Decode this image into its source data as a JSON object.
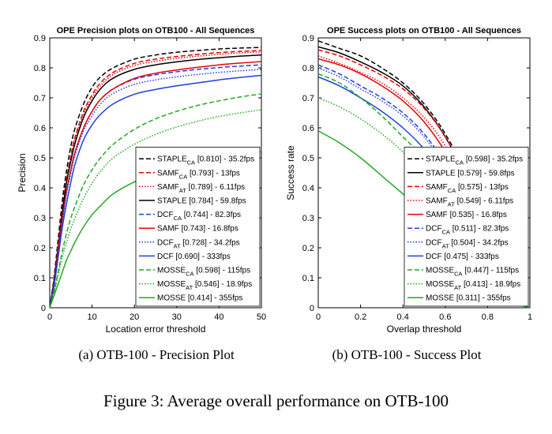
{
  "figure": {
    "caption": "Figure 3: Average overall performance on OTB-100",
    "sub_a": "(a) OTB-100 - Precision Plot",
    "sub_b": "(b) OTB-100 - Success Plot"
  },
  "chart_data": [
    {
      "type": "line",
      "title": "OPE Precision plots on OTB100 - All Sequences",
      "xlabel": "Location error threshold",
      "ylabel": "Precision",
      "xlim": [
        0,
        50
      ],
      "ylim": [
        0,
        0.9
      ],
      "xticks": [
        "0",
        "10",
        "20",
        "30",
        "40",
        "50"
      ],
      "yticks": [
        "0",
        "0.1",
        "0.2",
        "0.3",
        "0.4",
        "0.5",
        "0.6",
        "0.7",
        "0.8",
        "0.9"
      ],
      "grid": false,
      "legend_position": "bottom-right",
      "x": [
        0,
        1,
        2,
        3,
        4,
        5,
        6,
        8,
        10,
        12,
        15,
        20,
        25,
        30,
        35,
        40,
        45,
        50
      ],
      "series": [
        {
          "name": "STAPLE",
          "sub": "CA",
          "metric": "[0.810]",
          "fps": "35.2fps",
          "color": "#000000",
          "dash": "dashed",
          "values": [
            0.0,
            0.1,
            0.23,
            0.36,
            0.46,
            0.54,
            0.6,
            0.68,
            0.735,
            0.77,
            0.8,
            0.829,
            0.843,
            0.852,
            0.858,
            0.863,
            0.866,
            0.868
          ]
        },
        {
          "name": "SAMF",
          "sub": "CA",
          "metric": "[0.793]",
          "fps": "13fps",
          "color": "#ee0000",
          "dash": "dashed",
          "values": [
            0.0,
            0.09,
            0.21,
            0.33,
            0.43,
            0.51,
            0.57,
            0.655,
            0.71,
            0.75,
            0.785,
            0.815,
            0.829,
            0.838,
            0.845,
            0.851,
            0.855,
            0.858
          ]
        },
        {
          "name": "SAMF",
          "sub": "AT",
          "metric": "[0.789]",
          "fps": "6.11fps",
          "color": "#ee0000",
          "dash": "dotted",
          "values": [
            0.0,
            0.09,
            0.21,
            0.33,
            0.43,
            0.5,
            0.56,
            0.645,
            0.7,
            0.74,
            0.778,
            0.808,
            0.822,
            0.832,
            0.839,
            0.845,
            0.85,
            0.853
          ]
        },
        {
          "name": "STAPLE",
          "sub": "",
          "metric": "[0.784]",
          "fps": "59.8fps",
          "color": "#000000",
          "dash": "solid",
          "values": [
            0.0,
            0.09,
            0.2,
            0.32,
            0.42,
            0.49,
            0.55,
            0.635,
            0.69,
            0.73,
            0.766,
            0.795,
            0.81,
            0.82,
            0.828,
            0.834,
            0.839,
            0.843
          ]
        },
        {
          "name": "DCF",
          "sub": "CA",
          "metric": "[0.744]",
          "fps": "82.3fps",
          "color": "#1f3fdd",
          "dash": "dashed",
          "values": [
            0.0,
            0.08,
            0.19,
            0.3,
            0.39,
            0.46,
            0.52,
            0.6,
            0.655,
            0.695,
            0.73,
            0.762,
            0.777,
            0.787,
            0.795,
            0.801,
            0.806,
            0.81
          ]
        },
        {
          "name": "SAMF",
          "sub": "",
          "metric": "[0.743]",
          "fps": "16.8fps",
          "color": "#ee0000",
          "dash": "solid",
          "values": [
            0.0,
            0.08,
            0.19,
            0.3,
            0.39,
            0.46,
            0.52,
            0.6,
            0.655,
            0.695,
            0.73,
            0.765,
            0.782,
            0.793,
            0.802,
            0.81,
            0.816,
            0.821
          ]
        },
        {
          "name": "DCF",
          "sub": "AT",
          "metric": "[0.728]",
          "fps": "34.2fps",
          "color": "#1f3fdd",
          "dash": "dotted",
          "values": [
            0.0,
            0.08,
            0.18,
            0.29,
            0.38,
            0.45,
            0.51,
            0.59,
            0.64,
            0.68,
            0.715,
            0.745,
            0.76,
            0.77,
            0.778,
            0.785,
            0.79,
            0.795
          ]
        },
        {
          "name": "DCF",
          "sub": "",
          "metric": "[0.690]",
          "fps": "333fps",
          "color": "#1f3fdd",
          "dash": "solid",
          "values": [
            0.0,
            0.07,
            0.17,
            0.27,
            0.35,
            0.42,
            0.48,
            0.56,
            0.61,
            0.645,
            0.68,
            0.712,
            0.728,
            0.74,
            0.75,
            0.76,
            0.768,
            0.775
          ]
        },
        {
          "name": "MOSSE",
          "sub": "CA",
          "metric": "[0.598]",
          "fps": "115fps",
          "color": "#22aa22",
          "dash": "dashed",
          "values": [
            0.0,
            0.05,
            0.12,
            0.19,
            0.25,
            0.3,
            0.34,
            0.41,
            0.46,
            0.5,
            0.545,
            0.595,
            0.63,
            0.655,
            0.675,
            0.69,
            0.703,
            0.713
          ]
        },
        {
          "name": "MOSSE",
          "sub": "AT",
          "metric": "[0.546]",
          "fps": "18.9fps",
          "color": "#22aa22",
          "dash": "dotted",
          "values": [
            0.0,
            0.05,
            0.11,
            0.17,
            0.22,
            0.265,
            0.3,
            0.365,
            0.415,
            0.455,
            0.5,
            0.545,
            0.578,
            0.603,
            0.622,
            0.638,
            0.65,
            0.66
          ]
        },
        {
          "name": "MOSSE",
          "sub": "",
          "metric": "[0.414]",
          "fps": "355fps",
          "color": "#22aa22",
          "dash": "solid",
          "values": [
            0.0,
            0.04,
            0.08,
            0.12,
            0.16,
            0.19,
            0.22,
            0.27,
            0.31,
            0.34,
            0.38,
            0.42,
            0.45,
            0.47,
            0.485,
            0.5,
            0.51,
            0.52
          ]
        }
      ]
    },
    {
      "type": "line",
      "title": "OPE Success plots on OTB100 - All Sequences",
      "xlabel": "Overlap threshold",
      "ylabel": "Success rate",
      "xlim": [
        0,
        1
      ],
      "ylim": [
        0,
        0.9
      ],
      "xticks": [
        "0",
        "0.2",
        "0.4",
        "0.6",
        "0.8",
        "1"
      ],
      "yticks": [
        "0",
        "0.1",
        "0.2",
        "0.3",
        "0.4",
        "0.5",
        "0.6",
        "0.7",
        "0.8",
        "0.9"
      ],
      "grid": false,
      "legend_position": "bottom-right",
      "x": [
        0,
        0.1,
        0.2,
        0.3,
        0.4,
        0.5,
        0.6,
        0.7,
        0.8,
        0.9,
        1.0
      ],
      "series": [
        {
          "name": "STAPLE",
          "sub": "CA",
          "metric": "[0.598]",
          "fps": "35.2fps",
          "color": "#000000",
          "dash": "dashed",
          "values": [
            0.89,
            0.865,
            0.84,
            0.8,
            0.75,
            0.68,
            0.58,
            0.44,
            0.22,
            0.05,
            0.0
          ]
        },
        {
          "name": "STAPLE",
          "sub": "",
          "metric": "[0.579]",
          "fps": "59.8fps",
          "color": "#000000",
          "dash": "solid",
          "values": [
            0.87,
            0.85,
            0.82,
            0.785,
            0.74,
            0.67,
            0.57,
            0.43,
            0.21,
            0.045,
            0.0
          ]
        },
        {
          "name": "SAMF",
          "sub": "CA",
          "metric": "[0.575]",
          "fps": "13fps",
          "color": "#ee0000",
          "dash": "dashed",
          "values": [
            0.86,
            0.84,
            0.81,
            0.775,
            0.73,
            0.665,
            0.57,
            0.43,
            0.22,
            0.05,
            0.0
          ]
        },
        {
          "name": "SAMF",
          "sub": "AT",
          "metric": "[0.549]",
          "fps": "6.11fps",
          "color": "#ee0000",
          "dash": "dotted",
          "values": [
            0.84,
            0.815,
            0.785,
            0.75,
            0.7,
            0.635,
            0.54,
            0.4,
            0.2,
            0.045,
            0.0
          ]
        },
        {
          "name": "SAMF",
          "sub": "",
          "metric": "[0.535]",
          "fps": "16.8fps",
          "color": "#ee0000",
          "dash": "solid",
          "values": [
            0.83,
            0.81,
            0.78,
            0.74,
            0.69,
            0.62,
            0.52,
            0.385,
            0.19,
            0.04,
            0.0
          ]
        },
        {
          "name": "DCF",
          "sub": "CA",
          "metric": "[0.511]",
          "fps": "82.3fps",
          "color": "#1f3fdd",
          "dash": "dashed",
          "values": [
            0.81,
            0.78,
            0.74,
            0.7,
            0.65,
            0.58,
            0.48,
            0.35,
            0.17,
            0.035,
            0.0
          ]
        },
        {
          "name": "DCF",
          "sub": "AT",
          "metric": "[0.504]",
          "fps": "34.2fps",
          "color": "#1f3fdd",
          "dash": "dotted",
          "values": [
            0.8,
            0.77,
            0.73,
            0.69,
            0.64,
            0.57,
            0.47,
            0.34,
            0.165,
            0.035,
            0.0
          ]
        },
        {
          "name": "DCF",
          "sub": "",
          "metric": "[0.475]",
          "fps": "333fps",
          "color": "#1f3fdd",
          "dash": "solid",
          "values": [
            0.77,
            0.74,
            0.7,
            0.655,
            0.6,
            0.53,
            0.44,
            0.32,
            0.16,
            0.035,
            0.0
          ]
        },
        {
          "name": "MOSSE",
          "sub": "CA",
          "metric": "[0.447]",
          "fps": "115fps",
          "color": "#22aa22",
          "dash": "dashed",
          "values": [
            0.78,
            0.75,
            0.7,
            0.64,
            0.57,
            0.5,
            0.41,
            0.3,
            0.15,
            0.03,
            0.0
          ]
        },
        {
          "name": "MOSSE",
          "sub": "AT",
          "metric": "[0.413]",
          "fps": "18.9fps",
          "color": "#22aa22",
          "dash": "dotted",
          "values": [
            0.7,
            0.67,
            0.63,
            0.58,
            0.52,
            0.45,
            0.37,
            0.27,
            0.135,
            0.03,
            0.0
          ]
        },
        {
          "name": "MOSSE",
          "sub": "",
          "metric": "[0.311]",
          "fps": "355fps",
          "color": "#22aa22",
          "dash": "solid",
          "values": [
            0.59,
            0.55,
            0.5,
            0.44,
            0.38,
            0.32,
            0.26,
            0.19,
            0.1,
            0.025,
            0.0
          ]
        }
      ]
    }
  ]
}
